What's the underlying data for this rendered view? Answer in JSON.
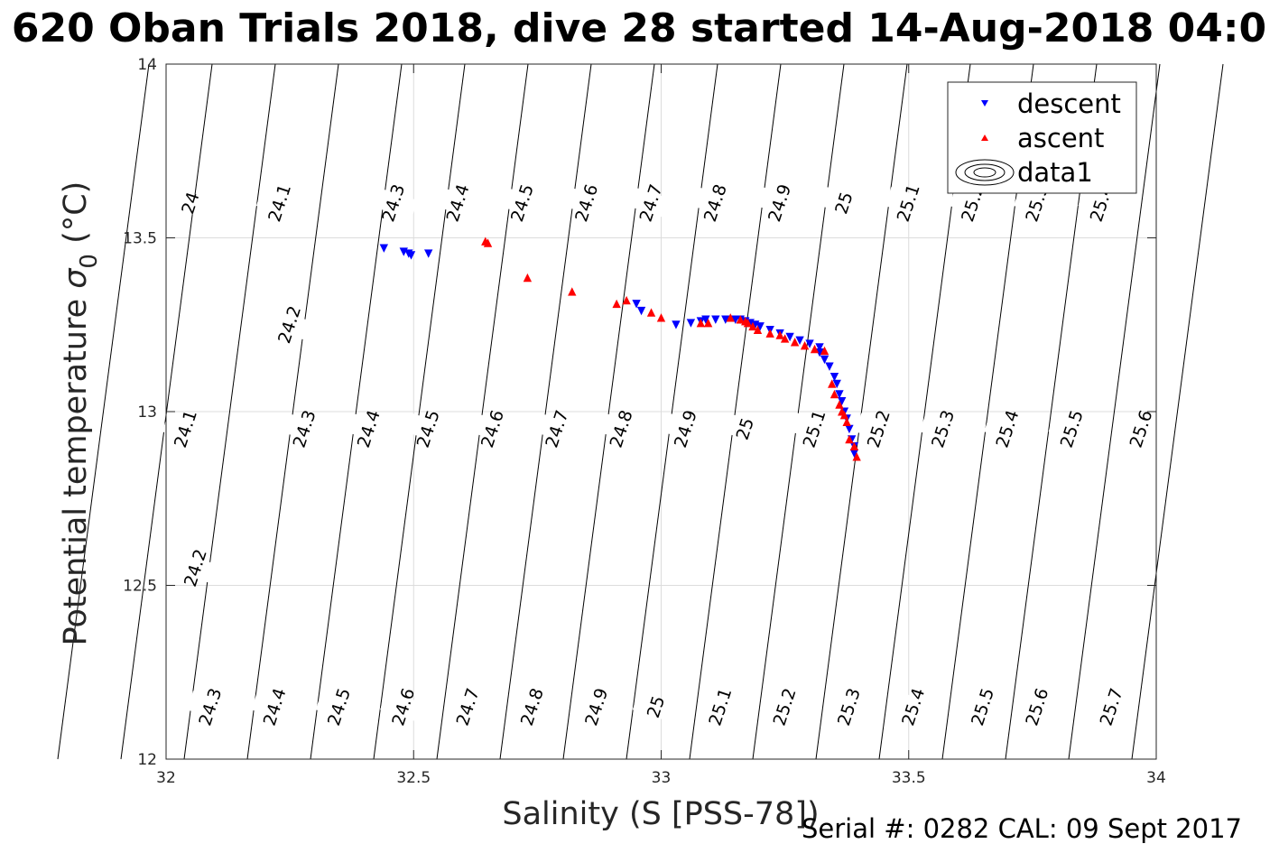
{
  "chart_data": {
    "type": "scatter",
    "title": "620 Oban Trials 2018, dive 28 started 14-Aug-2018 04:0",
    "xlabel": "Salinity (S [PSS-78])",
    "ylabel_main": "Potential temperature ",
    "ylabel_sigma": "σ",
    "ylabel_sub": "0",
    "ylabel_unit": " (°C)",
    "xlim": [
      32,
      34
    ],
    "ylim": [
      12,
      14
    ],
    "xticks": [
      32,
      32.5,
      33,
      33.5,
      34
    ],
    "xtick_labels": [
      "32",
      "32.5",
      "33",
      "33.5",
      "34"
    ],
    "yticks": [
      12,
      12.5,
      13,
      13.5,
      14
    ],
    "ytick_labels": [
      "12",
      "12.5",
      "13",
      "13.5",
      "14"
    ],
    "grid": true,
    "legend_position": "top-right",
    "legend": [
      {
        "label": "descent",
        "marker": "triangle-down",
        "color": "#0000ff"
      },
      {
        "label": "ascent",
        "marker": "triangle-up",
        "color": "#ff0000"
      },
      {
        "label": "data1",
        "marker": "contour",
        "color": "#000000"
      }
    ],
    "contour_label_rows": [
      {
        "y": 13.6,
        "labels": [
          "24",
          "24.1",
          "24.3",
          "24.4",
          "24.5",
          "24.6",
          "24.7",
          "24.8",
          "24.9",
          "25",
          "25.1",
          "25.2",
          "25.3",
          "25.4"
        ],
        "x": [
          32.05,
          32.23,
          32.46,
          32.59,
          32.72,
          32.85,
          32.98,
          33.11,
          33.24,
          33.37,
          33.5,
          33.63,
          33.76,
          33.89
        ]
      },
      {
        "y": 13.25,
        "labels": [
          "24.2"
        ],
        "x": [
          32.25
        ]
      },
      {
        "y": 12.95,
        "labels": [
          "24.1",
          "24.3",
          "24.4",
          "24.5",
          "24.6",
          "24.7",
          "24.8",
          "24.9",
          "25",
          "25.1",
          "25.2",
          "25.3",
          "25.4",
          "25.5",
          "25.6"
        ],
        "x": [
          32.04,
          32.28,
          32.41,
          32.53,
          32.66,
          32.79,
          32.92,
          33.05,
          33.17,
          33.31,
          33.44,
          33.57,
          33.7,
          33.83,
          33.97
        ]
      },
      {
        "y": 12.55,
        "labels": [
          "24.2"
        ],
        "x": [
          32.06
        ]
      },
      {
        "y": 12.15,
        "labels": [
          "24.3",
          "24.4",
          "24.5",
          "24.6",
          "24.7",
          "24.8",
          "24.9",
          "25",
          "25.1",
          "25.2",
          "25.3",
          "25.4",
          "25.5",
          "25.6",
          "25.7"
        ],
        "x": [
          32.09,
          32.22,
          32.35,
          32.48,
          32.61,
          32.74,
          32.87,
          32.99,
          33.12,
          33.25,
          33.38,
          33.51,
          33.65,
          33.76,
          33.91
        ]
      }
    ],
    "series": [
      {
        "name": "descent",
        "color": "#0000ff",
        "marker": "v",
        "points": [
          [
            32.44,
            13.47
          ],
          [
            32.48,
            13.46
          ],
          [
            32.49,
            13.455
          ],
          [
            32.495,
            13.45
          ],
          [
            32.53,
            13.455
          ],
          [
            32.95,
            13.31
          ],
          [
            32.96,
            13.29
          ],
          [
            33.03,
            13.25
          ],
          [
            33.06,
            13.255
          ],
          [
            33.08,
            13.26
          ],
          [
            33.09,
            13.265
          ],
          [
            33.11,
            13.265
          ],
          [
            33.13,
            13.265
          ],
          [
            33.15,
            13.265
          ],
          [
            33.16,
            13.265
          ],
          [
            33.17,
            13.26
          ],
          [
            33.18,
            13.255
          ],
          [
            33.19,
            13.25
          ],
          [
            33.2,
            13.245
          ],
          [
            33.22,
            13.235
          ],
          [
            33.24,
            13.225
          ],
          [
            33.26,
            13.215
          ],
          [
            33.28,
            13.205
          ],
          [
            33.3,
            13.195
          ],
          [
            33.32,
            13.185
          ],
          [
            33.32,
            13.17
          ],
          [
            33.33,
            13.15
          ],
          [
            33.34,
            13.13
          ],
          [
            33.35,
            13.1
          ],
          [
            33.355,
            13.08
          ],
          [
            33.36,
            13.05
          ],
          [
            33.365,
            13.03
          ],
          [
            33.37,
            13.0
          ],
          [
            33.375,
            12.98
          ],
          [
            33.38,
            12.95
          ],
          [
            33.385,
            12.92
          ],
          [
            33.39,
            12.9
          ],
          [
            33.39,
            12.88
          ]
        ]
      },
      {
        "name": "ascent",
        "color": "#ff0000",
        "marker": "^",
        "points": [
          [
            32.645,
            13.49
          ],
          [
            32.65,
            13.485
          ],
          [
            32.73,
            13.385
          ],
          [
            32.82,
            13.345
          ],
          [
            32.93,
            13.32
          ],
          [
            32.91,
            13.31
          ],
          [
            32.98,
            13.285
          ],
          [
            33.0,
            13.27
          ],
          [
            33.08,
            13.255
          ],
          [
            33.095,
            13.255
          ],
          [
            33.14,
            13.27
          ],
          [
            33.16,
            13.265
          ],
          [
            33.17,
            13.26
          ],
          [
            33.175,
            13.255
          ],
          [
            33.185,
            13.245
          ],
          [
            33.195,
            13.235
          ],
          [
            33.22,
            13.225
          ],
          [
            33.24,
            13.22
          ],
          [
            33.25,
            13.21
          ],
          [
            33.27,
            13.2
          ],
          [
            33.29,
            13.19
          ],
          [
            33.31,
            13.18
          ],
          [
            33.33,
            13.175
          ],
          [
            33.345,
            13.08
          ],
          [
            33.35,
            13.05
          ],
          [
            33.36,
            13.02
          ],
          [
            33.365,
            13.0
          ],
          [
            33.37,
            12.99
          ],
          [
            33.375,
            12.97
          ],
          [
            33.38,
            12.92
          ],
          [
            33.39,
            12.9
          ],
          [
            33.395,
            12.87
          ]
        ]
      }
    ],
    "footer": "Serial #: 0282  CAL: 09 Sept 2017"
  }
}
